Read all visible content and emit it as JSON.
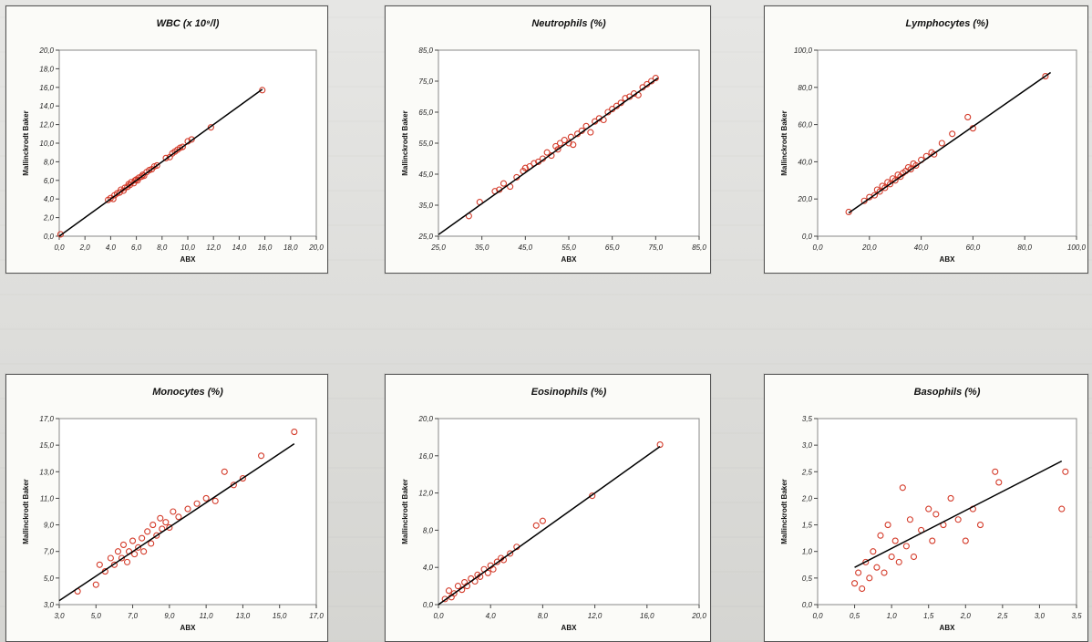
{
  "chart_data": [
    {
      "type": "scatter",
      "title": "WBC (x 10⁹/l)",
      "xlabel": "ABX",
      "ylabel": "Mallinckrodt Baker",
      "xlim": [
        0,
        20
      ],
      "ylim": [
        0,
        20
      ],
      "xticks": [
        "0,0",
        "2,0",
        "4,0",
        "6,0",
        "8,0",
        "10,0",
        "12,0",
        "14,0",
        "16,0",
        "18,0",
        "20,0"
      ],
      "yticks": [
        "0,0",
        "2,0",
        "4,0",
        "6,0",
        "8,0",
        "10,0",
        "12,0",
        "14,0",
        "16,0",
        "18,0",
        "20,0"
      ],
      "fit": [
        [
          0,
          0
        ],
        [
          15.8,
          15.8
        ]
      ],
      "points": [
        [
          0.1,
          0.2
        ],
        [
          3.8,
          3.9
        ],
        [
          4.0,
          4.1
        ],
        [
          4.2,
          4.0
        ],
        [
          4.3,
          4.4
        ],
        [
          4.5,
          4.6
        ],
        [
          4.7,
          4.7
        ],
        [
          4.8,
          5.0
        ],
        [
          5.0,
          4.9
        ],
        [
          5.1,
          5.2
        ],
        [
          5.3,
          5.3
        ],
        [
          5.4,
          5.6
        ],
        [
          5.5,
          5.5
        ],
        [
          5.6,
          5.8
        ],
        [
          5.8,
          5.7
        ],
        [
          5.9,
          6.0
        ],
        [
          6.0,
          6.1
        ],
        [
          6.1,
          6.0
        ],
        [
          6.2,
          6.3
        ],
        [
          6.4,
          6.4
        ],
        [
          6.5,
          6.6
        ],
        [
          6.6,
          6.5
        ],
        [
          6.8,
          6.9
        ],
        [
          7.0,
          7.1
        ],
        [
          7.2,
          7.2
        ],
        [
          7.4,
          7.5
        ],
        [
          7.6,
          7.6
        ],
        [
          8.3,
          8.4
        ],
        [
          8.6,
          8.5
        ],
        [
          8.8,
          8.9
        ],
        [
          9.0,
          9.1
        ],
        [
          9.2,
          9.3
        ],
        [
          9.4,
          9.5
        ],
        [
          9.6,
          9.6
        ],
        [
          10.0,
          10.2
        ],
        [
          10.3,
          10.4
        ],
        [
          11.8,
          11.7
        ],
        [
          15.8,
          15.7
        ]
      ]
    },
    {
      "type": "scatter",
      "title": "Neutrophils (%)",
      "xlabel": "ABX",
      "ylabel": "Mallinckrodt Baker",
      "xlim": [
        25,
        85
      ],
      "ylim": [
        25,
        85
      ],
      "xticks": [
        "25,0",
        "35,0",
        "45,0",
        "55,0",
        "65,0",
        "75,0",
        "85,0"
      ],
      "yticks": [
        "25,0",
        "35,0",
        "45,0",
        "55,0",
        "65,0",
        "75,0",
        "85,0"
      ],
      "fit": [
        [
          25,
          25.5
        ],
        [
          75.5,
          76
        ]
      ],
      "points": [
        [
          32,
          31.5
        ],
        [
          34.5,
          36
        ],
        [
          38,
          39.5
        ],
        [
          39,
          40
        ],
        [
          40,
          42
        ],
        [
          41.5,
          41
        ],
        [
          43,
          44
        ],
        [
          44.5,
          46
        ],
        [
          45,
          47
        ],
        [
          46,
          47.5
        ],
        [
          47,
          48.5
        ],
        [
          48,
          49
        ],
        [
          49,
          50
        ],
        [
          50,
          52
        ],
        [
          51,
          51
        ],
        [
          52,
          54
        ],
        [
          52.5,
          53
        ],
        [
          53,
          55
        ],
        [
          54,
          56
        ],
        [
          55,
          55
        ],
        [
          55.5,
          57
        ],
        [
          56,
          54.5
        ],
        [
          57,
          58
        ],
        [
          58,
          59
        ],
        [
          59,
          60.5
        ],
        [
          60,
          58.5
        ],
        [
          61,
          62
        ],
        [
          62,
          63
        ],
        [
          63,
          62.5
        ],
        [
          64,
          65
        ],
        [
          65,
          66
        ],
        [
          66,
          67
        ],
        [
          67,
          68
        ],
        [
          68,
          69.5
        ],
        [
          69,
          70
        ],
        [
          70,
          71
        ],
        [
          71,
          70.5
        ],
        [
          72,
          73
        ],
        [
          73,
          74
        ],
        [
          74,
          75
        ],
        [
          75,
          76
        ]
      ]
    },
    {
      "type": "scatter",
      "title": "Lymphocytes (%)",
      "xlabel": "ABX",
      "ylabel": "Mallinckrodt Baker",
      "xlim": [
        0,
        100
      ],
      "ylim": [
        0,
        100
      ],
      "xticks": [
        "0,0",
        "20,0",
        "40,0",
        "60,0",
        "80,0",
        "100,0"
      ],
      "yticks": [
        "0,0",
        "20,0",
        "40,0",
        "60,0",
        "80,0",
        "100,0"
      ],
      "fit": [
        [
          12,
          12.5
        ],
        [
          90,
          88
        ]
      ],
      "points": [
        [
          12,
          13
        ],
        [
          18,
          19
        ],
        [
          20,
          21
        ],
        [
          22,
          22
        ],
        [
          23,
          25
        ],
        [
          24,
          24
        ],
        [
          25,
          27
        ],
        [
          26,
          26
        ],
        [
          27,
          29
        ],
        [
          28,
          28
        ],
        [
          29,
          31
        ],
        [
          30,
          30
        ],
        [
          31,
          33
        ],
        [
          32,
          32
        ],
        [
          33,
          34
        ],
        [
          34,
          35
        ],
        [
          35,
          37
        ],
        [
          36,
          36
        ],
        [
          37,
          39
        ],
        [
          38,
          38
        ],
        [
          40,
          41
        ],
        [
          42,
          43
        ],
        [
          44,
          45
        ],
        [
          45,
          44
        ],
        [
          48,
          50
        ],
        [
          52,
          55
        ],
        [
          58,
          64
        ],
        [
          60,
          58
        ],
        [
          88,
          86
        ]
      ]
    },
    {
      "type": "scatter",
      "title": "Monocytes (%)",
      "xlabel": "ABX",
      "ylabel": "Mallinckrodt Baker",
      "xlim": [
        3,
        17
      ],
      "ylim": [
        3,
        17
      ],
      "xticks": [
        "3,0",
        "5,0",
        "7,0",
        "9,0",
        "11,0",
        "13,0",
        "15,0",
        "17,0"
      ],
      "yticks": [
        "3,0",
        "5,0",
        "7,0",
        "9,0",
        "11,0",
        "13,0",
        "15,0",
        "17,0"
      ],
      "fit": [
        [
          3,
          3.3
        ],
        [
          15.8,
          15.1
        ]
      ],
      "points": [
        [
          4,
          4
        ],
        [
          5,
          4.5
        ],
        [
          5.2,
          6
        ],
        [
          5.5,
          5.5
        ],
        [
          5.8,
          6.5
        ],
        [
          6,
          6
        ],
        [
          6.2,
          7
        ],
        [
          6.4,
          6.5
        ],
        [
          6.5,
          7.5
        ],
        [
          6.7,
          6.2
        ],
        [
          6.8,
          7
        ],
        [
          7,
          7.8
        ],
        [
          7.1,
          6.8
        ],
        [
          7.3,
          7.3
        ],
        [
          7.5,
          8
        ],
        [
          7.6,
          7
        ],
        [
          7.8,
          8.5
        ],
        [
          8,
          7.6
        ],
        [
          8.1,
          9
        ],
        [
          8.3,
          8.2
        ],
        [
          8.5,
          9.5
        ],
        [
          8.6,
          8.7
        ],
        [
          8.8,
          9.2
        ],
        [
          9,
          8.8
        ],
        [
          9.2,
          10
        ],
        [
          9.5,
          9.6
        ],
        [
          10,
          10.2
        ],
        [
          10.5,
          10.6
        ],
        [
          11,
          11
        ],
        [
          11.5,
          10.8
        ],
        [
          12,
          13
        ],
        [
          12.5,
          12
        ],
        [
          13,
          12.5
        ],
        [
          14,
          14.2
        ],
        [
          15.8,
          16
        ]
      ]
    },
    {
      "type": "scatter",
      "title": "Eosinophils (%)",
      "xlabel": "ABX",
      "ylabel": "Mallinckrodt Baker",
      "xlim": [
        0,
        20
      ],
      "ylim": [
        0,
        20
      ],
      "xticks": [
        "0,0",
        "4,0",
        "8,0",
        "12,0",
        "16,0",
        "20,0"
      ],
      "yticks": [
        "0,0",
        "4,0",
        "8,0",
        "12,0",
        "16,0",
        "20,0"
      ],
      "fit": [
        [
          0,
          0
        ],
        [
          17,
          17
        ]
      ],
      "points": [
        [
          0.5,
          0.6
        ],
        [
          0.8,
          1.5
        ],
        [
          1,
          0.8
        ],
        [
          1.2,
          1.2
        ],
        [
          1.5,
          2
        ],
        [
          1.8,
          1.6
        ],
        [
          2,
          2.4
        ],
        [
          2.2,
          2
        ],
        [
          2.5,
          2.8
        ],
        [
          2.8,
          2.5
        ],
        [
          3,
          3.2
        ],
        [
          3.2,
          3
        ],
        [
          3.5,
          3.8
        ],
        [
          3.8,
          3.4
        ],
        [
          4,
          4.2
        ],
        [
          4.2,
          3.8
        ],
        [
          4.5,
          4.6
        ],
        [
          4.8,
          5
        ],
        [
          5,
          4.8
        ],
        [
          5.5,
          5.5
        ],
        [
          6,
          6.2
        ],
        [
          7.5,
          8.5
        ],
        [
          8,
          9
        ],
        [
          11.8,
          11.7
        ],
        [
          17,
          17.2
        ]
      ]
    },
    {
      "type": "scatter",
      "title": "Basophils (%)",
      "xlabel": "ABX",
      "ylabel": "Mallinckrodt Baker",
      "xlim": [
        0,
        3.5
      ],
      "ylim": [
        0,
        3.5
      ],
      "xticks": [
        "0,0",
        "0,5",
        "1,0",
        "1,5",
        "2,0",
        "2,5",
        "3,0",
        "3,5"
      ],
      "yticks": [
        "0,0",
        "0,5",
        "1,0",
        "1,5",
        "2,0",
        "2,5",
        "3,0",
        "3,5"
      ],
      "fit": [
        [
          0.5,
          0.7
        ],
        [
          3.3,
          2.7
        ]
      ],
      "points": [
        [
          0.5,
          0.4
        ],
        [
          0.55,
          0.6
        ],
        [
          0.6,
          0.3
        ],
        [
          0.65,
          0.8
        ],
        [
          0.7,
          0.5
        ],
        [
          0.75,
          1
        ],
        [
          0.8,
          0.7
        ],
        [
          0.85,
          1.3
        ],
        [
          0.9,
          0.6
        ],
        [
          0.95,
          1.5
        ],
        [
          1,
          0.9
        ],
        [
          1.05,
          1.2
        ],
        [
          1.1,
          0.8
        ],
        [
          1.15,
          2.2
        ],
        [
          1.2,
          1.1
        ],
        [
          1.25,
          1.6
        ],
        [
          1.3,
          0.9
        ],
        [
          1.4,
          1.4
        ],
        [
          1.5,
          1.8
        ],
        [
          1.55,
          1.2
        ],
        [
          1.6,
          1.7
        ],
        [
          1.7,
          1.5
        ],
        [
          1.8,
          2
        ],
        [
          1.9,
          1.6
        ],
        [
          2,
          1.2
        ],
        [
          2.1,
          1.8
        ],
        [
          2.2,
          1.5
        ],
        [
          2.4,
          2.5
        ],
        [
          2.45,
          2.3
        ],
        [
          3.3,
          1.8
        ],
        [
          3.35,
          2.5
        ]
      ]
    }
  ]
}
